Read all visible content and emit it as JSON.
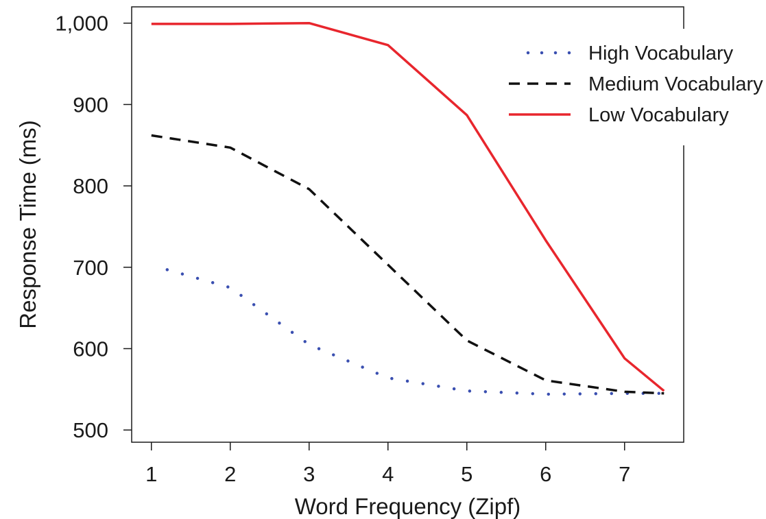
{
  "chart_data": {
    "type": "line",
    "xlabel": "Word Frequency (Zipf)",
    "ylabel": "Response Time (ms)",
    "xlim": [
      0.75,
      7.75
    ],
    "ylim": [
      485,
      1020
    ],
    "xticks": [
      1,
      2,
      3,
      4,
      5,
      6,
      7
    ],
    "yticks": [
      500,
      600,
      700,
      800,
      900,
      1000
    ],
    "xtick_labels": [
      "1",
      "2",
      "3",
      "4",
      "5",
      "6",
      "7"
    ],
    "ytick_labels": [
      "500",
      "600",
      "700",
      "800",
      "900",
      "1,000"
    ],
    "legend_position": "top-right",
    "grid": false,
    "series": [
      {
        "name": "High Vocabulary",
        "style": "dotted",
        "color": "#3a4fb0",
        "x": [
          1.2,
          2,
          3,
          4,
          5,
          6,
          7,
          7.5
        ],
        "y": [
          697,
          675,
          605,
          564,
          548,
          544,
          545,
          545
        ]
      },
      {
        "name": "Medium Vocabulary",
        "style": "dashed",
        "color": "#111111",
        "x": [
          1,
          2,
          3,
          4,
          5,
          6,
          7,
          7.5
        ],
        "y": [
          862,
          847,
          796,
          703,
          610,
          561,
          547,
          545
        ]
      },
      {
        "name": "Low Vocabulary",
        "style": "solid",
        "color": "#e8262d",
        "x": [
          1,
          2,
          3,
          4,
          5,
          6,
          7,
          7.5
        ],
        "y": [
          999,
          999,
          1000,
          973,
          887,
          733,
          588,
          548
        ]
      }
    ]
  }
}
